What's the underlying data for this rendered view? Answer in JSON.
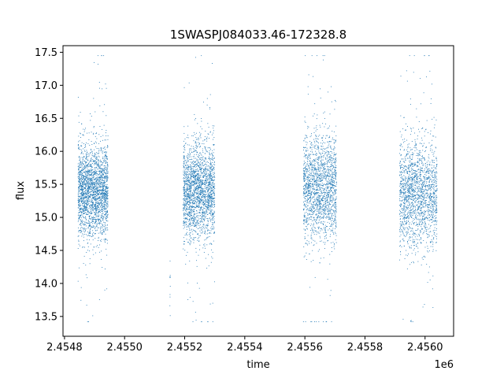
{
  "chart_data": {
    "type": "scatter",
    "title": "1SWASPJ084033.46-172328.8",
    "xlabel": "time",
    "ylabel": "flux",
    "x_offset_label": "1e6",
    "xlim": [
      2454795,
      2456095
    ],
    "ylim": [
      13.2,
      17.6
    ],
    "x_ticks": [
      2454800,
      2455000,
      2455200,
      2455400,
      2455600,
      2455800,
      2456000
    ],
    "x_tick_labels": [
      "2.4548",
      "2.4550",
      "2.4552",
      "2.4554",
      "2.4556",
      "2.4558",
      "2.4560"
    ],
    "y_ticks": [
      13.5,
      14.0,
      14.5,
      15.0,
      15.5,
      16.0,
      16.5,
      17.0,
      17.5
    ],
    "y_tick_labels": [
      "13.5",
      "14.0",
      "14.5",
      "15.0",
      "15.5",
      "16.0",
      "16.5",
      "17.0",
      "17.5"
    ],
    "grid": false,
    "marker_color": "#1f77b4",
    "seasons": [
      {
        "x_start": 2454845,
        "x_end": 2454945,
        "center": 15.4,
        "spread": 0.35,
        "n": 2300
      },
      {
        "x_start": 2455150,
        "x_end": 2455152,
        "center": 14.05,
        "spread": 0.15,
        "n": 10
      },
      {
        "x_start": 2455195,
        "x_end": 2455300,
        "center": 15.4,
        "spread": 0.35,
        "n": 2100
      },
      {
        "x_start": 2455595,
        "x_end": 2455705,
        "center": 15.45,
        "spread": 0.4,
        "n": 1800
      },
      {
        "x_start": 2455915,
        "x_end": 2456040,
        "center": 15.35,
        "spread": 0.4,
        "n": 1800
      }
    ]
  }
}
